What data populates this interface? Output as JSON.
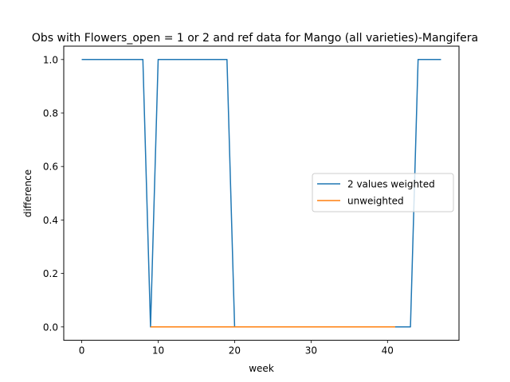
{
  "chart_data": {
    "type": "line",
    "title": "Obs with Flowers_open = 1 or 2 and ref data for Mango (all varieties)-Mangifera",
    "xlabel": "week",
    "ylabel": "difference",
    "xlim": [
      -2.35,
      49.35
    ],
    "ylim": [
      -0.05,
      1.05
    ],
    "xticks": [
      0,
      10,
      20,
      30,
      40
    ],
    "yticks": [
      0.0,
      0.2,
      0.4,
      0.6,
      0.8,
      1.0
    ],
    "xtick_labels": [
      "0",
      "10",
      "20",
      "30",
      "40"
    ],
    "ytick_labels": [
      "0.0",
      "0.2",
      "0.4",
      "0.6",
      "0.8",
      "1.0"
    ],
    "grid": false,
    "legend_position": "center-right",
    "series": [
      {
        "name": "2 values weighted",
        "color": "#1f77b4",
        "x": [
          0,
          8,
          9,
          10,
          19,
          20,
          43,
          44,
          47
        ],
        "y": [
          1.0,
          1.0,
          0.0,
          1.0,
          1.0,
          0.0,
          0.0,
          1.0,
          1.0
        ]
      },
      {
        "name": "unweighted",
        "color": "#ff7f0e",
        "x": [
          9,
          41
        ],
        "y": [
          0.0,
          0.0
        ]
      }
    ]
  }
}
